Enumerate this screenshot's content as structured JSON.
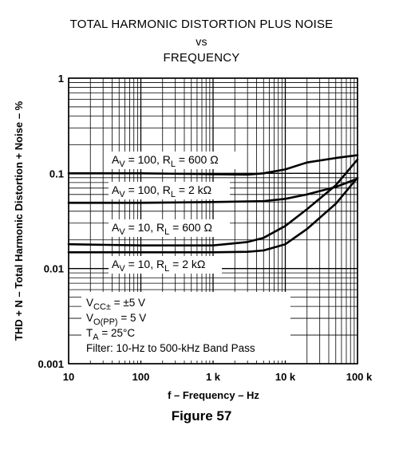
{
  "chart_data": {
    "type": "line",
    "title_lines": [
      "TOTAL HARMONIC DISTORTION PLUS NOISE",
      "vs",
      "FREQUENCY"
    ],
    "xlabel": "f – Frequency – Hz",
    "ylabel": "THD + N – Total Harmonic Distortion + Noise – %",
    "x_scale": "log",
    "y_scale": "log",
    "xlim": [
      10,
      100000
    ],
    "ylim": [
      0.001,
      1
    ],
    "grid": true,
    "x_ticks": [
      {
        "value": 10,
        "label": "10"
      },
      {
        "value": 100,
        "label": "100"
      },
      {
        "value": 1000,
        "label": "1 k"
      },
      {
        "value": 10000,
        "label": "10 k"
      },
      {
        "value": 100000,
        "label": "100 k"
      }
    ],
    "y_ticks": [
      {
        "value": 1,
        "label": "1"
      },
      {
        "value": 0.1,
        "label": "0.1"
      },
      {
        "value": 0.01,
        "label": "0.01"
      },
      {
        "value": 0.001,
        "label": "0.001"
      }
    ],
    "series": [
      {
        "name": "AV = 100, RL = 600 Ω",
        "label_main": "A",
        "label_sub1": "V",
        "label_mid": " = 100, R",
        "label_sub2": "L",
        "label_end": " = 600 Ω",
        "x": [
          10,
          100,
          1000,
          3000,
          5000,
          10000,
          20000,
          50000,
          100000
        ],
        "y": [
          0.1,
          0.1,
          0.098,
          0.097,
          0.1,
          0.11,
          0.13,
          0.145,
          0.155
        ]
      },
      {
        "name": "AV = 100, RL = 2 kΩ",
        "label_main": "A",
        "label_sub1": "V",
        "label_mid": " = 100, R",
        "label_sub2": "L",
        "label_end": " = 2 kΩ",
        "x": [
          10,
          100,
          1000,
          5000,
          10000,
          20000,
          50000,
          100000
        ],
        "y": [
          0.049,
          0.049,
          0.05,
          0.051,
          0.054,
          0.06,
          0.072,
          0.088
        ]
      },
      {
        "name": "AV = 10, RL = 600 Ω",
        "label_main": "A",
        "label_sub1": "V",
        "label_mid": " = 10, R",
        "label_sub2": "L",
        "label_end": " = 600 Ω",
        "x": [
          10,
          100,
          1000,
          3000,
          5000,
          10000,
          20000,
          50000,
          100000
        ],
        "y": [
          0.018,
          0.0175,
          0.0175,
          0.019,
          0.021,
          0.028,
          0.042,
          0.075,
          0.14
        ]
      },
      {
        "name": "AV = 10, RL = 2 kΩ",
        "label_main": "A",
        "label_sub1": "V",
        "label_mid": " = 10, R",
        "label_sub2": "L",
        "label_end": " = 2 kΩ",
        "x": [
          10,
          100,
          1000,
          3000,
          5000,
          10000,
          20000,
          50000,
          100000
        ],
        "y": [
          0.0148,
          0.0148,
          0.0148,
          0.015,
          0.0155,
          0.018,
          0.026,
          0.048,
          0.09
        ]
      }
    ],
    "annotations": [
      {
        "parts": [
          {
            "t": "V"
          },
          {
            "t": "CC±",
            "sub": true
          },
          {
            "t": " = ±5 V"
          }
        ]
      },
      {
        "parts": [
          {
            "t": "V"
          },
          {
            "t": "O(PP)",
            "sub": true
          },
          {
            "t": " = 5 V"
          }
        ]
      },
      {
        "parts": [
          {
            "t": "T"
          },
          {
            "t": "A",
            "sub": true
          },
          {
            "t": " = 25°C"
          }
        ]
      },
      {
        "parts": [
          {
            "t": "Filter: 10-Hz to 500-kHz Band Pass"
          }
        ]
      }
    ]
  },
  "figure_caption": "Figure 57"
}
